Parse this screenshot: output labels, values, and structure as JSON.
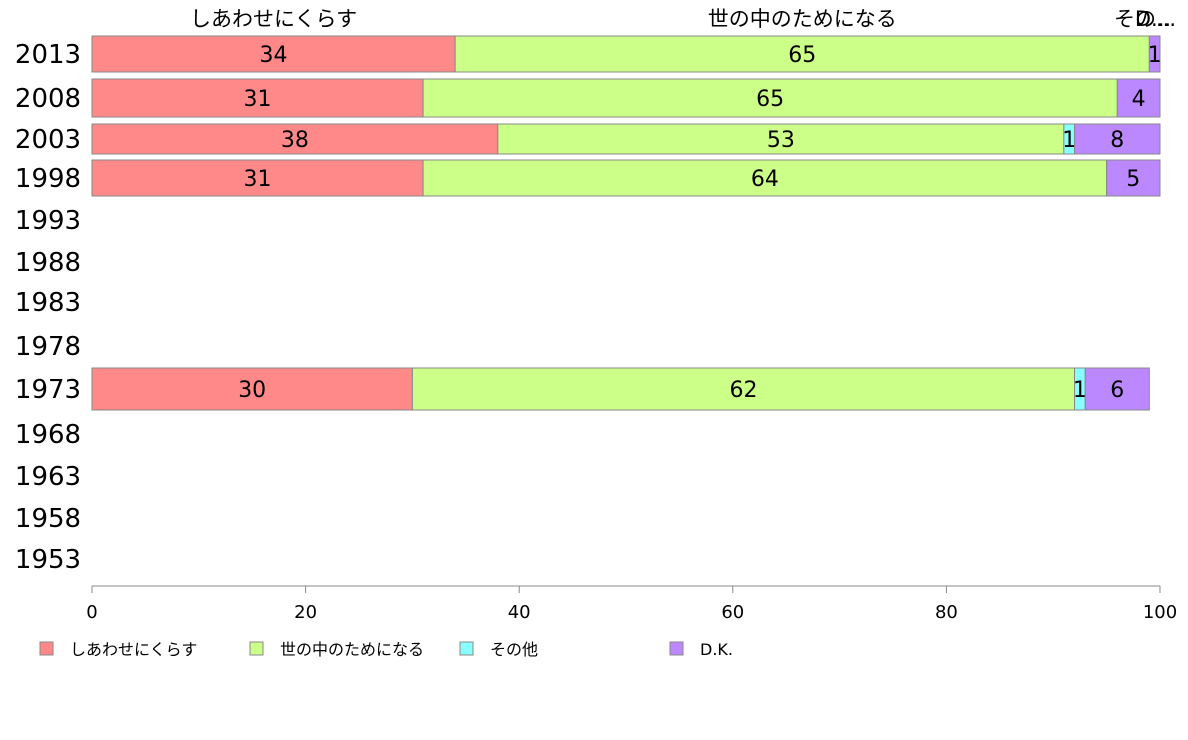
{
  "chart_data": {
    "type": "bar",
    "orientation": "horizontal",
    "stacked": true,
    "categories": [
      "2013",
      "2008",
      "2003",
      "1998",
      "1993",
      "1988",
      "1983",
      "1978",
      "1973",
      "1968",
      "1963",
      "1958",
      "1953"
    ],
    "series": [
      {
        "name": "しあわせにくらす",
        "color": "#ff8888",
        "values": [
          34,
          31,
          38,
          31,
          null,
          null,
          null,
          null,
          30,
          null,
          null,
          null,
          null
        ]
      },
      {
        "name": "世の中のためになる",
        "color": "#ccff88",
        "values": [
          65,
          65,
          53,
          64,
          null,
          null,
          null,
          null,
          62,
          null,
          null,
          null,
          null
        ]
      },
      {
        "name": "その他",
        "color": "#88ffff",
        "values": [
          0,
          0,
          1,
          0,
          null,
          null,
          null,
          null,
          1,
          null,
          null,
          null,
          null
        ]
      },
      {
        "name": "D.K.",
        "color": "#bb88ff",
        "values": [
          1,
          4,
          8,
          5,
          null,
          null,
          null,
          null,
          6,
          null,
          null,
          null,
          null
        ]
      }
    ],
    "top_labels": [
      "しあわせにくらす",
      "世の中のためになる",
      "その...",
      "D..."
    ],
    "xlim": [
      0,
      100
    ],
    "xticks": [
      0,
      20,
      40,
      60,
      80,
      100
    ],
    "grid": false,
    "legend_position": "bottom"
  }
}
